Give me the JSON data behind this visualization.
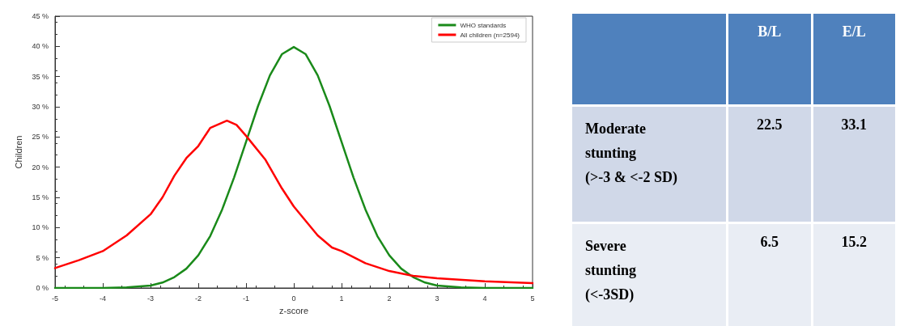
{
  "chart_data": [
    {
      "type": "line",
      "xlabel": "z-score",
      "ylabel": "Children",
      "xlim": [
        -5,
        5
      ],
      "xticks": [
        -5,
        -4,
        -3,
        -2,
        -1,
        0,
        1,
        2,
        3,
        4,
        5
      ],
      "ylim": [
        0,
        45
      ],
      "yticks": [
        {
          "value": 0,
          "label": "0 %"
        },
        {
          "value": 5,
          "label": "5 %"
        },
        {
          "value": 10,
          "label": "10 %"
        },
        {
          "value": 15,
          "label": "15 %"
        },
        {
          "value": 20,
          "label": "20 %"
        },
        {
          "value": 25,
          "label": "25 %"
        },
        {
          "value": 30,
          "label": "30 %"
        },
        {
          "value": 35,
          "label": "35 %"
        },
        {
          "value": 40,
          "label": "40 %"
        },
        {
          "value": 45,
          "label": "45 %"
        }
      ],
      "grid": false,
      "legend": "top right",
      "marker": "none",
      "line_style": "solid",
      "series": [
        {
          "name": "WHO standards",
          "color": "#1a8a1a",
          "x": [
            -5,
            -4.5,
            -4,
            -3.5,
            -3,
            -2.75,
            -2.5,
            -2.25,
            -2,
            -1.75,
            -1.5,
            -1.25,
            -1,
            -0.75,
            -0.5,
            -0.25,
            0,
            0.25,
            0.5,
            0.75,
            1,
            1.25,
            1.5,
            1.75,
            2,
            2.25,
            2.5,
            2.75,
            3,
            3.5,
            4,
            4.5,
            5
          ],
          "values": [
            0,
            0,
            0,
            0.1,
            0.4,
            0.9,
            1.8,
            3.2,
            5.4,
            8.6,
            13,
            18.3,
            24.2,
            30.1,
            35.2,
            38.7,
            39.9,
            38.7,
            35.2,
            30.1,
            24.2,
            18.3,
            13,
            8.6,
            5.4,
            3.2,
            1.8,
            0.9,
            0.4,
            0.1,
            0,
            0,
            0
          ]
        },
        {
          "name": "All children (n=2594)",
          "color": "#ff0000",
          "x": [
            -5,
            -4.5,
            -4,
            -3.5,
            -3,
            -2.75,
            -2.5,
            -2.25,
            -2,
            -1.75,
            -1.4,
            -1.2,
            -1,
            -0.6,
            -0.25,
            0,
            0.5,
            0.8,
            1,
            1.5,
            2,
            2.5,
            3,
            4,
            5
          ],
          "values": [
            3.3,
            4.6,
            6.1,
            8.7,
            12.2,
            15,
            18.6,
            21.5,
            23.5,
            26.5,
            27.7,
            27,
            25.2,
            21.3,
            16.5,
            13.5,
            8.7,
            6.7,
            6.1,
            4.1,
            2.8,
            2.0,
            1.6,
            1.1,
            0.8
          ]
        }
      ]
    },
    {
      "type": "other",
      "categories": [
        "B/L",
        "E/L"
      ],
      "data_labels": true,
      "series": [
        {
          "name": "Moderate\nstunting\n(>-3 & <-2 SD)",
          "values": [
            22.5,
            33.1
          ]
        },
        {
          "name": "Severe\nstunting\n(<-3SD)",
          "values": [
            6.5,
            15.2
          ]
        }
      ]
    }
  ]
}
